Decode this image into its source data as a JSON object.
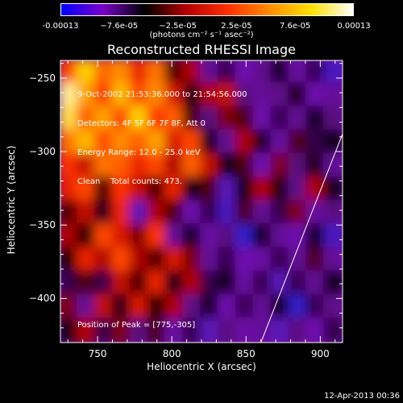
{
  "colorbar": {
    "ticks": [
      "-0.00013",
      "−7.6e-05",
      "−2.5e-05",
      "2.5e-05",
      "7.6e-05",
      "0.00013"
    ],
    "units": "(photons cm⁻² s⁻¹ asec⁻²)",
    "range": [
      -0.00013,
      0.00013
    ],
    "colormap": [
      "#0000ff",
      "#7a00c8",
      "#000000",
      "#b40000",
      "#ff3000",
      "#ff8c00",
      "#ffe000",
      "#ffffff"
    ]
  },
  "chart_data": {
    "type": "heatmap",
    "title": "Reconstructed RHESSI Image",
    "xlabel": "Heliocentric X (arcsec)",
    "ylabel": "Heliocentric Y (arcsec)",
    "xlim": [
      725,
      915
    ],
    "ylim": [
      -430,
      -238
    ],
    "xticks": [
      "750",
      "800",
      "850",
      "900"
    ],
    "yticks": [
      "-250",
      "-300",
      "-350",
      "-400"
    ],
    "xtick_values": [
      750,
      800,
      850,
      900
    ],
    "ytick_values": [
      -250,
      -300,
      -350,
      -400
    ],
    "annotations": {
      "date_range": "9-Oct-2002 21:53:36.000 to 21:54:56.000",
      "detectors": "Detectors: 4F 5F 6F 7F 8F, Att 0",
      "energy": "Energy Range: 12.0 - 25.0 keV",
      "clean": "Clean    Total counts: 473.",
      "peak": "Position of Peak = [775,-305]"
    },
    "peak": [
      775,
      -305
    ],
    "limb_line": [
      [
        860,
        -430
      ],
      [
        915,
        -288
      ]
    ],
    "grid_sample_intensity_rows_top_to_bottom": [
      [
        0.55,
        0.85,
        0.62,
        0.7,
        0.45,
        0.65,
        0.2,
        0.3,
        -0.1,
        0.05,
        -0.2,
        -0.05,
        0.1,
        -0.15,
        0.05,
        -0.3
      ],
      [
        0.95,
        0.75,
        0.5,
        0.8,
        0.55,
        0.7,
        0.4,
        0.1,
        0.3,
        0.35,
        0.0,
        -0.1,
        -0.05,
        0.15,
        -0.2,
        -0.1
      ],
      [
        0.9,
        0.6,
        0.75,
        0.55,
        0.85,
        0.5,
        0.6,
        0.2,
        0.0,
        0.25,
        0.2,
        -0.2,
        0.05,
        -0.1,
        0.1,
        0.0
      ],
      [
        0.65,
        0.8,
        0.55,
        0.7,
        0.6,
        0.75,
        0.4,
        0.55,
        0.1,
        -0.1,
        0.3,
        0.1,
        -0.15,
        0.2,
        0.05,
        0.1
      ],
      [
        0.5,
        0.35,
        0.65,
        0.6,
        0.45,
        0.55,
        0.3,
        0.6,
        0.35,
        0.1,
        0.2,
        -0.2,
        0.25,
        0.0,
        0.15,
        -0.1
      ],
      [
        0.45,
        0.55,
        0.2,
        0.5,
        0.35,
        0.2,
        0.45,
        0.1,
        0.2,
        -0.25,
        0.1,
        0.3,
        0.15,
        -0.05,
        0.3,
        0.1
      ],
      [
        0.2,
        0.35,
        0.1,
        0.45,
        -0.25,
        0.3,
        0.2,
        -0.2,
        0.05,
        -0.3,
        0.2,
        -0.1,
        0.05,
        0.25,
        -0.15,
        0.0
      ],
      [
        0.3,
        0.15,
        0.55,
        0.4,
        0.25,
        0.5,
        -0.1,
        0.1,
        -0.15,
        0.0,
        -0.35,
        0.1,
        -0.1,
        -0.2,
        0.1,
        -0.3
      ],
      [
        0.15,
        0.45,
        0.3,
        0.55,
        0.3,
        0.2,
        0.4,
        0.25,
        -0.1,
        0.05,
        -0.2,
        -0.15,
        0.05,
        -0.1,
        0.2,
        -0.1
      ],
      [
        0.05,
        0.2,
        0.05,
        0.35,
        0.2,
        0.45,
        0.1,
        0.3,
        0.05,
        0.1,
        -0.15,
        0.05,
        -0.25,
        0.05,
        -0.1,
        0.1
      ],
      [
        0.25,
        -0.1,
        0.35,
        0.1,
        0.4,
        0.15,
        0.3,
        -0.05,
        0.1,
        -0.2,
        0.05,
        -0.1,
        0.1,
        -0.35,
        0.05,
        -0.05
      ],
      [
        0.1,
        0.3,
        0.05,
        0.25,
        0.0,
        0.2,
        -0.15,
        0.05,
        -0.25,
        0.0,
        -0.15,
        -0.1,
        -0.25,
        0.0,
        -0.2,
        0.05
      ]
    ]
  },
  "footer": "12-Apr-2013 00:36"
}
